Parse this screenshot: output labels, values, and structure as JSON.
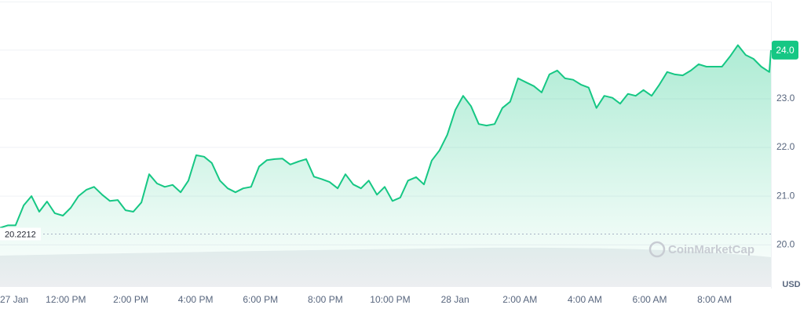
{
  "chart_data": {
    "type": "line",
    "x": [
      9.97,
      10.21,
      10.45,
      10.7,
      10.94,
      11.18,
      11.42,
      11.66,
      11.91,
      12.15,
      12.39,
      12.63,
      12.87,
      13.12,
      13.36,
      13.6,
      13.84,
      14.08,
      14.33,
      14.57,
      14.81,
      15.05,
      15.29,
      15.54,
      15.78,
      16.02,
      16.26,
      16.5,
      16.75,
      16.99,
      17.23,
      17.47,
      17.71,
      17.96,
      18.2,
      18.44,
      18.68,
      18.92,
      19.17,
      19.41,
      19.65,
      19.89,
      20.13,
      20.38,
      20.62,
      20.86,
      21.1,
      21.34,
      21.59,
      21.83,
      22.07,
      22.31,
      22.55,
      22.8,
      23.04,
      23.28,
      23.52,
      23.76,
      24.01,
      24.25,
      24.49,
      24.73,
      24.97,
      25.22,
      25.46,
      25.7,
      25.94,
      26.18,
      26.43,
      26.67,
      26.91,
      27.15,
      27.39,
      27.64,
      27.88,
      28.12,
      28.36,
      28.6,
      28.85,
      29.09,
      29.33,
      29.57,
      29.81,
      30.06,
      30.3,
      30.54,
      30.78,
      31.02,
      31.27,
      31.51,
      31.75,
      31.99,
      32.23,
      32.48,
      32.72,
      32.96,
      33.2,
      33.44,
      33.69,
      33.74
    ],
    "series": [
      {
        "color": "#16c784",
        "values": [
          20.35,
          20.4,
          20.4,
          20.81,
          21.0,
          20.68,
          20.89,
          20.65,
          20.6,
          20.76,
          21.0,
          21.13,
          21.19,
          21.03,
          20.9,
          20.92,
          20.71,
          20.68,
          20.87,
          21.45,
          21.26,
          21.19,
          21.23,
          21.08,
          21.32,
          21.84,
          21.81,
          21.68,
          21.32,
          21.16,
          21.08,
          21.16,
          21.19,
          21.61,
          21.74,
          21.76,
          21.77,
          21.65,
          21.71,
          21.76,
          21.4,
          21.35,
          21.29,
          21.16,
          21.45,
          21.24,
          21.16,
          21.32,
          21.03,
          21.19,
          20.9,
          20.97,
          21.32,
          21.39,
          21.24,
          21.73,
          21.94,
          22.26,
          22.77,
          23.06,
          22.85,
          22.48,
          22.45,
          22.48,
          22.81,
          22.94,
          23.42,
          23.34,
          23.26,
          23.13,
          23.5,
          23.58,
          23.42,
          23.39,
          23.29,
          23.23,
          22.81,
          23.06,
          23.02,
          22.9,
          23.1,
          23.06,
          23.18,
          23.06,
          23.29,
          23.55,
          23.5,
          23.48,
          23.58,
          23.71,
          23.66,
          23.66,
          23.66,
          23.87,
          24.1,
          23.9,
          23.82,
          23.66,
          23.55,
          24.0
        ]
      }
    ],
    "xlim": [
      9.97,
      33.74
    ],
    "xticks": [
      {
        "value": 10,
        "label": "27 Jan"
      },
      {
        "value": 12,
        "label": "12:00 PM"
      },
      {
        "value": 14,
        "label": "2:00 PM"
      },
      {
        "value": 16,
        "label": "4:00 PM"
      },
      {
        "value": 18,
        "label": "6:00 PM"
      },
      {
        "value": 20,
        "label": "8:00 PM"
      },
      {
        "value": 22,
        "label": "10:00 PM"
      },
      {
        "value": 24,
        "label": "28 Jan"
      },
      {
        "value": 26,
        "label": "2:00 AM"
      },
      {
        "value": 28,
        "label": "4:00 AM"
      },
      {
        "value": 30,
        "label": "6:00 AM"
      },
      {
        "value": 32,
        "label": "8:00 AM"
      }
    ],
    "ylim": [
      19.15,
      24.98
    ],
    "yticks": [
      {
        "value": 20,
        "label": "20.0"
      },
      {
        "value": 21,
        "label": "21.0"
      },
      {
        "value": 22,
        "label": "22.0"
      },
      {
        "value": 23,
        "label": "23.0"
      },
      {
        "value": 24,
        "label": "24.0"
      }
    ],
    "open_price": 20.2212,
    "current_price": {
      "value": 24.0,
      "label": "24.0"
    },
    "watermark": "CoinMarketCap",
    "currency": "USD",
    "grid": true
  }
}
